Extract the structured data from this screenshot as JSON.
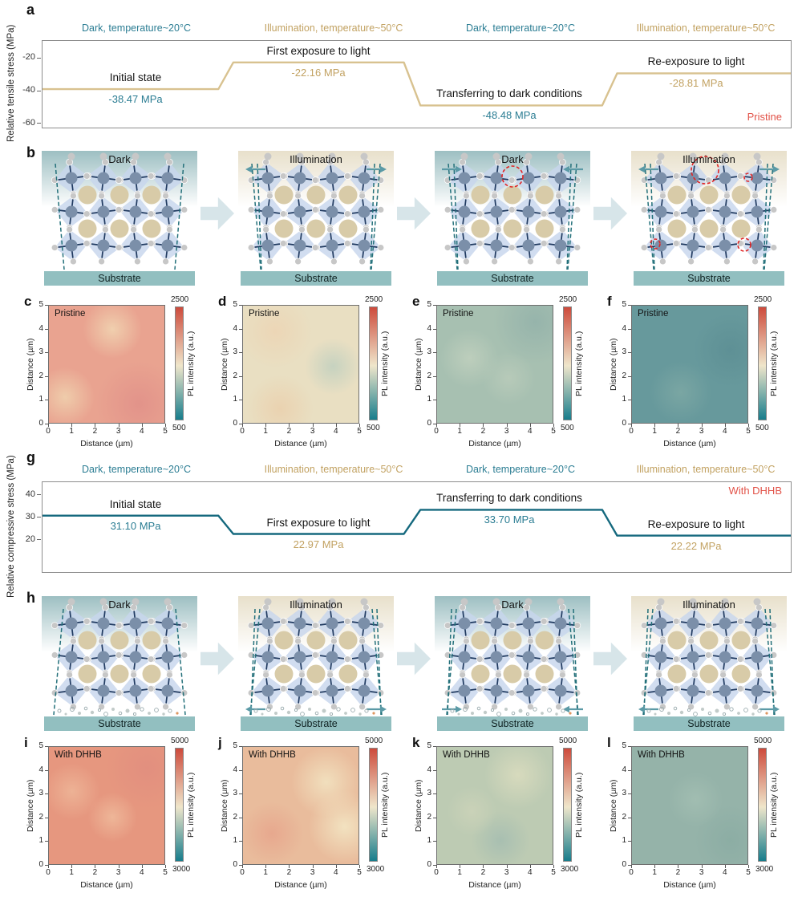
{
  "colors": {
    "teal_text": "#2b7d93",
    "tan_text": "#c2a262",
    "tan_line": "#d8c290",
    "teal_line": "#15697e",
    "red_label": "#e25349",
    "cbar_top": "#cd4b3c",
    "cbar_mid": "#efe6cb",
    "cbar_bottom": "#177d8c",
    "substrate": "#92bfc0",
    "diamond": "#c7d6ed",
    "b_site": "#7b8fa9",
    "x_site": "#c7c7c7",
    "a_site": "#d8cba8",
    "bond": "#203a60",
    "dashed_line": "#23707a",
    "arrow_teal": "#5b9aa6",
    "block_arrow": "#d7e5e9",
    "defect_red": "#e02525",
    "dark_bg": "#9dbfc2",
    "light_bg": "#e8e0cb",
    "molecule_gray": "#c2cbc9",
    "molecule_orange": "#dd9660"
  },
  "panel_letters": {
    "a": "a",
    "b": "b",
    "g": "g",
    "h": "h"
  },
  "chart_data": [
    {
      "type": "line",
      "subtype": "step",
      "panel": "a",
      "ylabel": "Relative tensile stress (MPa)",
      "ylim": [
        -62,
        -9
      ],
      "yticks": [
        -20,
        -40,
        -60
      ],
      "stages": [
        "Dark, temperature~20°C",
        "Illumination, temperature~50°C",
        "Dark, temperature~20°C",
        "Illumination, temperature~50°C"
      ],
      "stage_labels": [
        "Initial state",
        "First exposure to light",
        "Transferring to dark conditions",
        "Re-exposure to light"
      ],
      "values_mpa": [
        -38.47,
        -22.16,
        -48.48,
        -28.81
      ],
      "value_labels": [
        "-38.47 MPa",
        "-22.16 MPa",
        "-48.48 MPa",
        "-28.81 MPa"
      ],
      "sample": "Pristine"
    },
    {
      "type": "line",
      "subtype": "step",
      "panel": "g",
      "ylabel": "Relative compressive stress (MPa)",
      "ylim": [
        6,
        46
      ],
      "yticks": [
        40,
        30,
        20
      ],
      "stages": [
        "Dark, temperature~20°C",
        "Illumination, temperature~50°C",
        "Dark, temperature~20°C",
        "Illumination, temperature~50°C"
      ],
      "stage_labels": [
        "Initial state",
        "First exposure to light",
        "Transferring to dark conditions",
        "Re-exposure to light"
      ],
      "values_mpa": [
        31.1,
        22.97,
        33.7,
        22.22
      ],
      "value_labels": [
        "31.10 MPa",
        "22.97 MPa",
        "33.70 MPa",
        "22.22 MPa"
      ],
      "sample": "With DHHB"
    },
    {
      "type": "heatmap",
      "panels": [
        "c",
        "d",
        "e",
        "f"
      ],
      "sample": "Pristine",
      "x_label": "Distance (µm)",
      "y_label": "Distance (µm)",
      "x_range_um": [
        0,
        5
      ],
      "y_range_um": [
        0,
        5
      ],
      "color_range": [
        500,
        2500
      ],
      "colorbar_label": "PL intensity (a.u.)",
      "approx_mean_intensity": [
        2050,
        1550,
        1150,
        900
      ]
    },
    {
      "type": "heatmap",
      "panels": [
        "i",
        "j",
        "k",
        "l"
      ],
      "sample": "With DHHB",
      "x_label": "Distance (µm)",
      "y_label": "Distance (µm)",
      "x_range_um": [
        0,
        5
      ],
      "y_range_um": [
        0,
        5
      ],
      "color_range": [
        3000,
        5000
      ],
      "colorbar_label": "PL intensity (a.u.)",
      "approx_mean_intensity": [
        4650,
        4400,
        3900,
        3700
      ]
    }
  ],
  "stress_meta": [
    {
      "letter": "a",
      "stage_colors": [
        "teal_text",
        "tan_text",
        "teal_text",
        "tan_text"
      ],
      "value_colors": [
        "teal_text",
        "tan_text",
        "teal_text",
        "tan_text"
      ],
      "line_color": "tan_line",
      "sample_color": "red_label",
      "sample_pos": "bottom-right"
    },
    {
      "letter": "g",
      "stage_colors": [
        "teal_text",
        "tan_text",
        "teal_text",
        "tan_text"
      ],
      "value_colors": [
        "teal_text",
        "tan_text",
        "teal_text",
        "tan_text"
      ],
      "line_color": "teal_line",
      "sample_color": "red_label",
      "sample_pos": "top-right"
    }
  ],
  "structures": {
    "substrate_label": "Substrate",
    "rows": [
      {
        "id": "b",
        "tilt": "tensile",
        "molecules": false,
        "panels": [
          {
            "condition": "Dark",
            "arrows": null,
            "defects": []
          },
          {
            "condition": "Illumination",
            "arrows": {
              "pos": "top",
              "dir": "out"
            },
            "defects": []
          },
          {
            "condition": "Dark",
            "arrows": {
              "pos": "top",
              "dir": "in"
            },
            "defects": [
              "circled-atom"
            ]
          },
          {
            "condition": "Illumination",
            "arrows": {
              "pos": "top",
              "dir": "out"
            },
            "defects": [
              "large-vacancy",
              "small-vacancy-a",
              "small-vacancy-b",
              "small-vacancy-c"
            ]
          }
        ]
      },
      {
        "id": "h",
        "tilt": "compressive",
        "molecules": true,
        "panels": [
          {
            "condition": "Dark",
            "arrows": null,
            "defects": []
          },
          {
            "condition": "Illumination",
            "arrows": {
              "pos": "bottom",
              "dir": "out"
            },
            "defects": []
          },
          {
            "condition": "Dark",
            "arrows": {
              "pos": "bottom",
              "dir": "in"
            },
            "defects": []
          },
          {
            "condition": "Illumination",
            "arrows": {
              "pos": "bottom",
              "dir": "out"
            },
            "defects": []
          }
        ]
      }
    ]
  },
  "heatmaps": {
    "common": {
      "axis_label": "Distance (µm)",
      "ticks": [
        0,
        1,
        2,
        3,
        4,
        5
      ],
      "cbar_label": "PL intensity (a.u.)"
    },
    "rows": [
      {
        "letters": [
          "c",
          "d",
          "e",
          "f"
        ],
        "sample": "Pristine",
        "cbar_top": "2500",
        "cbar_bottom": "500",
        "panels": [
          {
            "base": "#e9a390",
            "blobs": [
              {
                "x": 55,
                "y": 20,
                "c": "#f0cfae",
                "r": 26
              },
              {
                "x": 14,
                "y": 78,
                "c": "#efccab",
                "r": 22
              },
              {
                "x": 78,
                "y": 84,
                "c": "#e2938a",
                "r": 32
              }
            ]
          },
          {
            "base": "#e9dfc2",
            "blobs": [
              {
                "x": 78,
                "y": 52,
                "c": "#c6d2c0",
                "r": 26
              },
              {
                "x": 28,
                "y": 22,
                "c": "#ecd6b6",
                "r": 30
              },
              {
                "x": 32,
                "y": 88,
                "c": "#ead2b0",
                "r": 26
              }
            ]
          },
          {
            "base": "#a7c0b1",
            "blobs": [
              {
                "x": 28,
                "y": 45,
                "c": "#bdcebc",
                "r": 28
              },
              {
                "x": 62,
                "y": 62,
                "c": "#b7cab9",
                "r": 26
              },
              {
                "x": 85,
                "y": 14,
                "c": "#96b4ab",
                "r": 30
              }
            ]
          },
          {
            "base": "#67999c",
            "blobs": [
              {
                "x": 42,
                "y": 74,
                "c": "#7aa6a3",
                "r": 28
              },
              {
                "x": 85,
                "y": 38,
                "c": "#5e9095",
                "r": 30
              }
            ]
          }
        ]
      },
      {
        "letters": [
          "i",
          "j",
          "k",
          "l"
        ],
        "sample": "With DHHB",
        "cbar_top": "5000",
        "cbar_bottom": "3000",
        "panels": [
          {
            "base": "#e6977f",
            "blobs": [
              {
                "x": 20,
                "y": 38,
                "c": "#edb295",
                "r": 24
              },
              {
                "x": 55,
                "y": 60,
                "c": "#eeb698",
                "r": 26
              },
              {
                "x": 85,
                "y": 18,
                "c": "#e28f7f",
                "r": 30
              }
            ]
          },
          {
            "base": "#e9bc9c",
            "blobs": [
              {
                "x": 72,
                "y": 30,
                "c": "#f1dfbd",
                "r": 30
              },
              {
                "x": 88,
                "y": 68,
                "c": "#f2e2c0",
                "r": 28
              },
              {
                "x": 25,
                "y": 74,
                "c": "#e7a88e",
                "r": 26
              }
            ]
          },
          {
            "base": "#bdcbb3",
            "blobs": [
              {
                "x": 70,
                "y": 24,
                "c": "#d7dabd",
                "r": 28
              },
              {
                "x": 30,
                "y": 55,
                "c": "#cad2b8",
                "r": 24
              },
              {
                "x": 55,
                "y": 80,
                "c": "#a8bfb1",
                "r": 26
              }
            ]
          },
          {
            "base": "#95b3a9",
            "blobs": [
              {
                "x": 55,
                "y": 45,
                "c": "#a1bdb1",
                "r": 30
              },
              {
                "x": 85,
                "y": 80,
                "c": "#8cada4",
                "r": 26
              }
            ]
          }
        ]
      }
    ]
  }
}
